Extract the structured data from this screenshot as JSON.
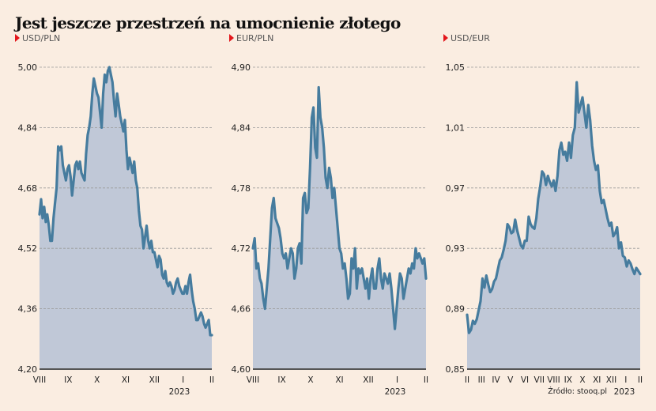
{
  "title": "Jest jeszcze przestrzeń na umocnienie złotego",
  "source": "Źródło: stooq.pl",
  "colors": {
    "line": "#467c9e",
    "fill": "#c0c8d7",
    "marker": "#e3161b",
    "background": "#faede1"
  },
  "chart_data": [
    {
      "type": "area",
      "title": "USD/PLN",
      "ylim": [
        4.2,
        5.0
      ],
      "yticks": [
        "5,00",
        "4,84",
        "4,68",
        "4,52",
        "4,36",
        "4,20"
      ],
      "ytick_values": [
        5.0,
        4.84,
        4.68,
        4.52,
        4.36,
        4.2
      ],
      "xticks": [
        "VIII",
        "IX",
        "X",
        "XI",
        "XII",
        "I",
        "II"
      ],
      "year_label": "2023",
      "grid": true,
      "values": [
        4.61,
        4.65,
        4.6,
        4.63,
        4.59,
        4.61,
        4.58,
        4.54,
        4.54,
        4.6,
        4.64,
        4.68,
        4.79,
        4.78,
        4.79,
        4.74,
        4.72,
        4.7,
        4.73,
        4.74,
        4.71,
        4.66,
        4.7,
        4.74,
        4.75,
        4.73,
        4.75,
        4.72,
        4.71,
        4.7,
        4.77,
        4.82,
        4.84,
        4.87,
        4.93,
        4.97,
        4.95,
        4.93,
        4.92,
        4.88,
        4.84,
        4.93,
        4.98,
        4.96,
        4.99,
        5.0,
        4.98,
        4.96,
        4.91,
        4.87,
        4.93,
        4.9,
        4.87,
        4.85,
        4.83,
        4.86,
        4.78,
        4.73,
        4.76,
        4.74,
        4.72,
        4.75,
        4.7,
        4.68,
        4.62,
        4.58,
        4.57,
        4.52,
        4.55,
        4.58,
        4.54,
        4.52,
        4.54,
        4.51,
        4.51,
        4.49,
        4.47,
        4.5,
        4.49,
        4.45,
        4.44,
        4.46,
        4.43,
        4.42,
        4.43,
        4.42,
        4.4,
        4.41,
        4.43,
        4.44,
        4.42,
        4.41,
        4.4,
        4.4,
        4.42,
        4.4,
        4.43,
        4.45,
        4.41,
        4.38,
        4.36,
        4.33,
        4.33,
        4.34,
        4.35,
        4.34,
        4.32,
        4.31,
        4.32,
        4.33,
        4.29,
        4.29
      ]
    },
    {
      "type": "area",
      "title": "EUR/PLN",
      "ylim": [
        4.6,
        4.9
      ],
      "yticks": [
        "4,90",
        "4,84",
        "4,78",
        "4,72",
        "4,66",
        "4,60"
      ],
      "ytick_values": [
        4.9,
        4.84,
        4.78,
        4.72,
        4.66,
        4.6
      ],
      "xticks": [
        "VIII",
        "IX",
        "X",
        "XI",
        "XII",
        "I",
        "II"
      ],
      "year_label": "2023",
      "grid": true,
      "values": [
        4.72,
        4.73,
        4.7,
        4.705,
        4.69,
        4.685,
        4.67,
        4.66,
        4.68,
        4.7,
        4.73,
        4.76,
        4.77,
        4.75,
        4.745,
        4.74,
        4.73,
        4.715,
        4.71,
        4.715,
        4.7,
        4.71,
        4.72,
        4.715,
        4.69,
        4.7,
        4.72,
        4.725,
        4.705,
        4.77,
        4.775,
        4.755,
        4.76,
        4.8,
        4.85,
        4.86,
        4.82,
        4.81,
        4.88,
        4.85,
        4.84,
        4.82,
        4.79,
        4.78,
        4.8,
        4.79,
        4.77,
        4.78,
        4.76,
        4.74,
        4.72,
        4.715,
        4.7,
        4.705,
        4.69,
        4.67,
        4.675,
        4.71,
        4.7,
        4.72,
        4.68,
        4.7,
        4.695,
        4.7,
        4.69,
        4.68,
        4.69,
        4.67,
        4.69,
        4.7,
        4.68,
        4.68,
        4.7,
        4.71,
        4.69,
        4.68,
        4.695,
        4.69,
        4.685,
        4.695,
        4.68,
        4.66,
        4.64,
        4.66,
        4.68,
        4.695,
        4.69,
        4.67,
        4.68,
        4.69,
        4.7,
        4.695,
        4.705,
        4.7,
        4.72,
        4.71,
        4.715,
        4.71,
        4.705,
        4.71,
        4.69
      ]
    },
    {
      "type": "area",
      "title": "USD/EUR",
      "ylim": [
        0.85,
        1.05
      ],
      "yticks": [
        "1,05",
        "1,01",
        "0,97",
        "0,93",
        "0,89",
        "0,85"
      ],
      "ytick_values": [
        1.05,
        1.01,
        0.97,
        0.93,
        0.89,
        0.85
      ],
      "xticks": [
        "II",
        "III",
        "IV",
        "V",
        "VI",
        "VII",
        "VIII",
        "IX",
        "X",
        "XI",
        "XII",
        "I",
        "II"
      ],
      "year_label": "2023",
      "grid": true,
      "values": [
        0.886,
        0.874,
        0.876,
        0.882,
        0.88,
        0.883,
        0.889,
        0.895,
        0.91,
        0.904,
        0.912,
        0.906,
        0.901,
        0.903,
        0.908,
        0.91,
        0.916,
        0.922,
        0.924,
        0.929,
        0.935,
        0.946,
        0.944,
        0.94,
        0.941,
        0.949,
        0.942,
        0.937,
        0.932,
        0.93,
        0.935,
        0.935,
        0.951,
        0.946,
        0.944,
        0.943,
        0.95,
        0.963,
        0.971,
        0.981,
        0.979,
        0.972,
        0.978,
        0.974,
        0.971,
        0.975,
        0.968,
        0.978,
        0.995,
        1.0,
        0.992,
        0.994,
        0.988,
        1.0,
        0.99,
        1.005,
        1.01,
        1.04,
        1.02,
        1.025,
        1.03,
        1.02,
        1.01,
        1.025,
        1.015,
        0.998,
        0.988,
        0.982,
        0.985,
        0.968,
        0.96,
        0.962,
        0.956,
        0.95,
        0.945,
        0.947,
        0.938,
        0.94,
        0.944,
        0.93,
        0.934,
        0.925,
        0.924,
        0.918,
        0.922,
        0.92,
        0.916,
        0.913,
        0.917,
        0.915,
        0.913
      ]
    }
  ]
}
